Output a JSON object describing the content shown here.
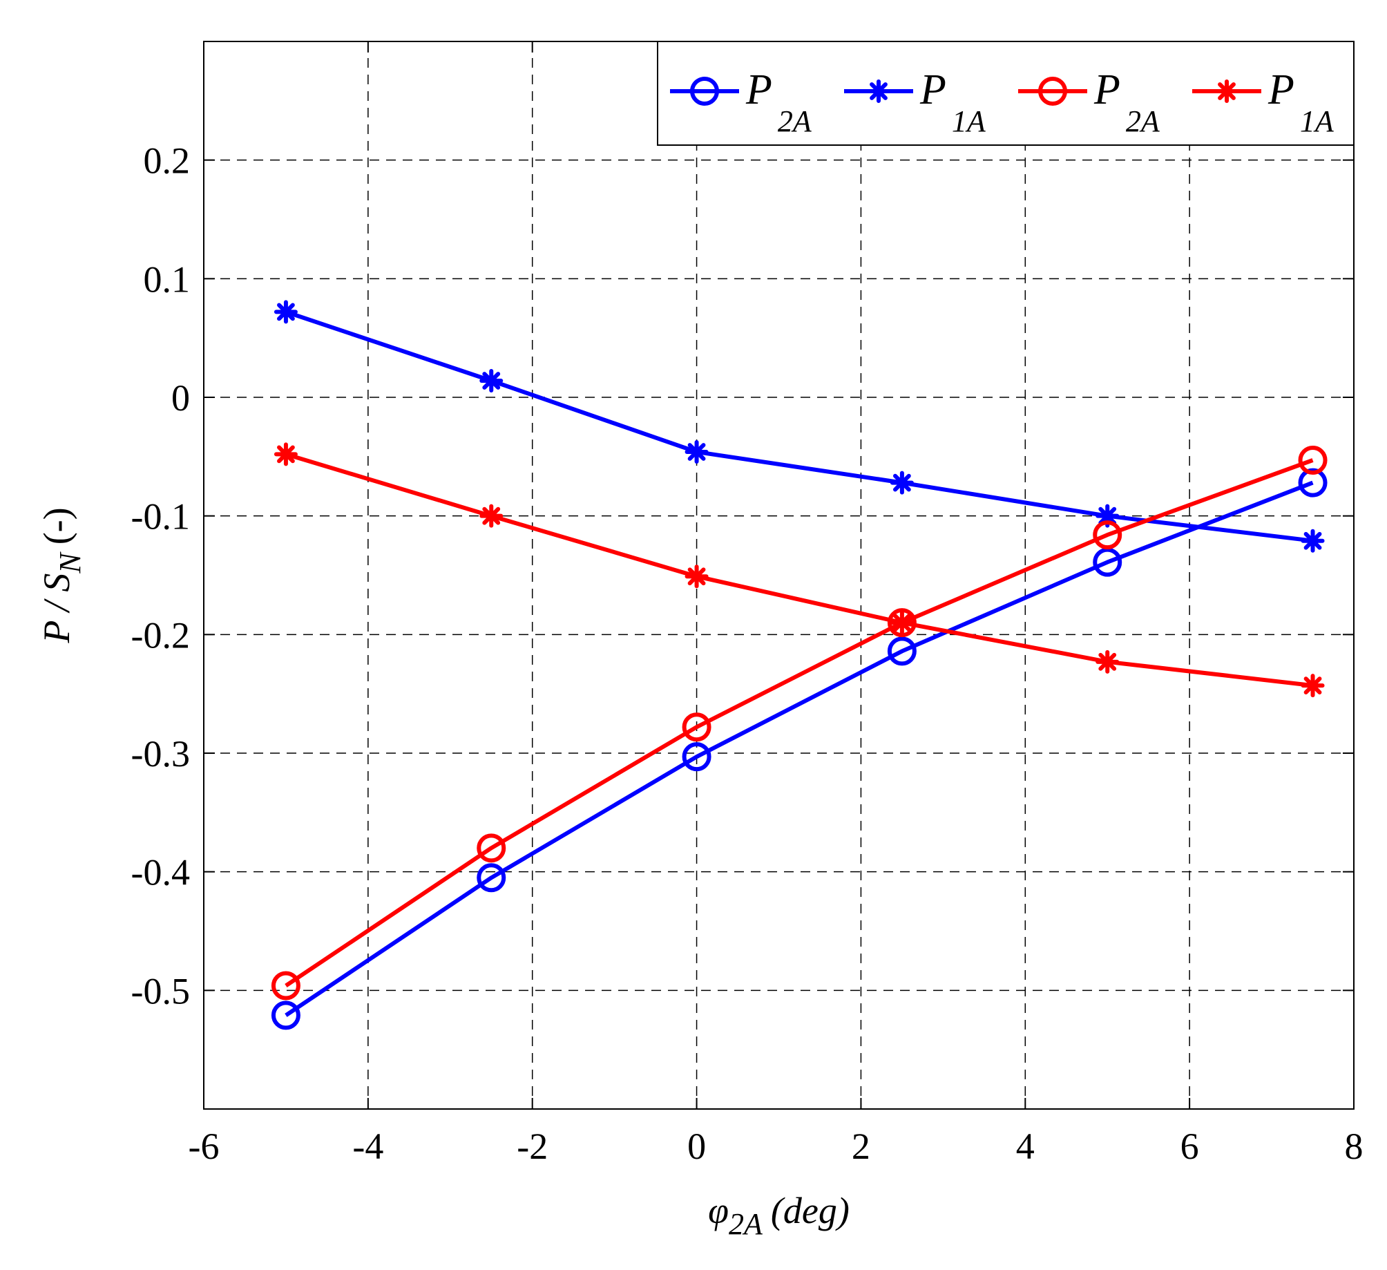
{
  "chart_data": {
    "type": "line",
    "title": "",
    "xlabel": {
      "symbol": "φ",
      "subscript": "2A",
      "unit": "(deg)"
    },
    "ylabel": {
      "prefix": "P / S",
      "subscript": "N",
      "suffix": "(-)"
    },
    "xlim": [
      -6,
      8
    ],
    "ylim": [
      -0.6,
      0.3
    ],
    "xticks": [
      -6,
      -4,
      -2,
      0,
      2,
      4,
      6,
      8
    ],
    "xtick_labels": [
      "-6",
      "-4",
      "-2",
      "0",
      "2",
      "4",
      "6",
      "8"
    ],
    "yticks": [
      -0.5,
      -0.4,
      -0.3,
      -0.2,
      -0.1,
      0,
      0.1,
      0.2
    ],
    "ytick_labels": [
      "-0.5",
      "-0.4",
      "-0.3",
      "-0.2",
      "-0.1",
      "0",
      "0.1",
      "0.2"
    ],
    "grid": true,
    "legend_position": "top-right",
    "series": [
      {
        "name": "P",
        "subscript": "2A",
        "color": "#0000ff",
        "marker": "circle",
        "x": [
          -5,
          -2.5,
          0,
          2.5,
          5,
          7.5
        ],
        "values": [
          -0.521,
          -0.405,
          -0.303,
          -0.214,
          -0.139,
          -0.072
        ]
      },
      {
        "name": "P",
        "subscript": "1A",
        "color": "#0000ff",
        "marker": "star",
        "x": [
          -5,
          -2.5,
          0,
          2.5,
          5,
          7.5
        ],
        "values": [
          0.072,
          0.014,
          -0.046,
          -0.072,
          -0.1,
          -0.121
        ]
      },
      {
        "name": "P",
        "subscript": "2A",
        "color": "#ff0000",
        "marker": "circle",
        "x": [
          -5,
          -2.5,
          0,
          2.5,
          5,
          7.5
        ],
        "values": [
          -0.496,
          -0.38,
          -0.278,
          -0.19,
          -0.116,
          -0.053
        ]
      },
      {
        "name": "P",
        "subscript": "1A",
        "color": "#ff0000",
        "marker": "star",
        "x": [
          -5,
          -2.5,
          0,
          2.5,
          5,
          7.5
        ],
        "values": [
          -0.048,
          -0.1,
          -0.151,
          -0.19,
          -0.223,
          -0.243
        ]
      }
    ]
  }
}
